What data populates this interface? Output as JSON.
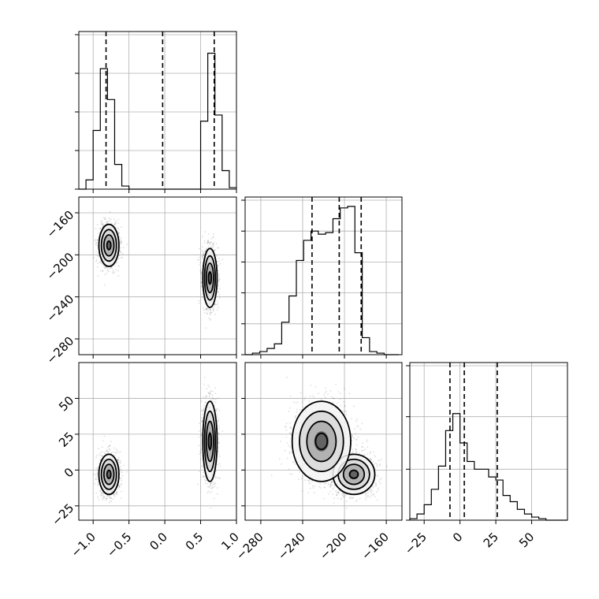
{
  "chart_data": {
    "type": "corner",
    "parameters": [
      {
        "key": "p0",
        "range": [
          -1.2,
          1.0
        ],
        "ticks": [
          -1.0,
          -0.5,
          0.0,
          0.5,
          1.0
        ],
        "tick_labels": [
          "−1.0",
          "−0.5",
          "0.0",
          "0.5",
          "1.0"
        ],
        "quantiles": [
          -0.82,
          -0.03,
          0.69
        ],
        "histogram": {
          "bin_edges": [
            -1.2,
            -1.1,
            -1.0,
            -0.9,
            -0.8,
            -0.7,
            -0.6,
            -0.5,
            -0.4,
            -0.3,
            -0.2,
            -0.1,
            0.0,
            0.1,
            0.2,
            0.3,
            0.4,
            0.5,
            0.6,
            0.7,
            0.8,
            0.9,
            1.0
          ],
          "counts": [
            0,
            0.06,
            0.38,
            0.78,
            0.58,
            0.16,
            0.02,
            0,
            0,
            0,
            0,
            0,
            0,
            0,
            0,
            0,
            0,
            0.44,
            0.88,
            0.48,
            0.12,
            0.01
          ]
        }
      },
      {
        "key": "p1",
        "range": [
          -295,
          -145
        ],
        "ticks": [
          -160,
          -200,
          -240,
          -280
        ],
        "tick_labels": [
          "−160",
          "−200",
          "−240",
          "−280"
        ],
        "quantiles": [
          -231,
          -205,
          -184
        ],
        "histogram": {
          "bin_edges": [
            -295,
            -288,
            -281,
            -274,
            -267,
            -260,
            -253,
            -246,
            -239,
            -232,
            -225,
            -218,
            -211,
            -204,
            -197,
            -190,
            -183,
            -176,
            -169,
            -162,
            -155,
            -148
          ],
          "counts": [
            0,
            0.01,
            0.02,
            0.04,
            0.07,
            0.21,
            0.38,
            0.61,
            0.74,
            0.8,
            0.78,
            0.79,
            0.88,
            0.95,
            0.96,
            0.66,
            0.11,
            0.02,
            0.01,
            0,
            0
          ]
        }
      },
      {
        "key": "p2",
        "range": [
          -35,
          75
        ],
        "ticks": [
          -25,
          0,
          25,
          50
        ],
        "tick_labels": [
          "−25",
          "0",
          "25",
          "50"
        ],
        "quantiles": [
          -7,
          3,
          26
        ],
        "histogram": {
          "bin_edges": [
            -35,
            -30,
            -25,
            -20,
            -15,
            -10,
            -5,
            0,
            5,
            10,
            15,
            20,
            25,
            30,
            35,
            40,
            45,
            50,
            55,
            60,
            65,
            70,
            75
          ],
          "counts": [
            0.01,
            0.04,
            0.1,
            0.2,
            0.35,
            0.58,
            0.69,
            0.5,
            0.38,
            0.33,
            0.33,
            0.28,
            0.26,
            0.16,
            0.12,
            0.07,
            0.04,
            0.02,
            0.01,
            0,
            0,
            0
          ]
        }
      }
    ],
    "y_ticks_top_histogram_fraction": [
      0,
      0.25,
      0.5,
      0.75,
      1.0
    ],
    "y_ticks_middle_histogram_fraction": [
      0,
      0.2,
      0.4,
      0.6,
      0.8,
      1.0
    ],
    "y_ticks_bottom_histogram_fraction": [
      0,
      0.33,
      0.67,
      1.0
    ],
    "modes": [
      {
        "p0": -0.78,
        "p1": -191,
        "p2": -3,
        "sd0": 0.07,
        "sd1": 10,
        "sd2": 7,
        "weight": 0.5
      },
      {
        "p0": 0.63,
        "p1": -222,
        "p2": 20,
        "sd0": 0.05,
        "sd1": 14,
        "sd2": 14,
        "weight": 0.5
      }
    ],
    "grid": true,
    "line_color": "#000000",
    "density_color": "#555555"
  }
}
